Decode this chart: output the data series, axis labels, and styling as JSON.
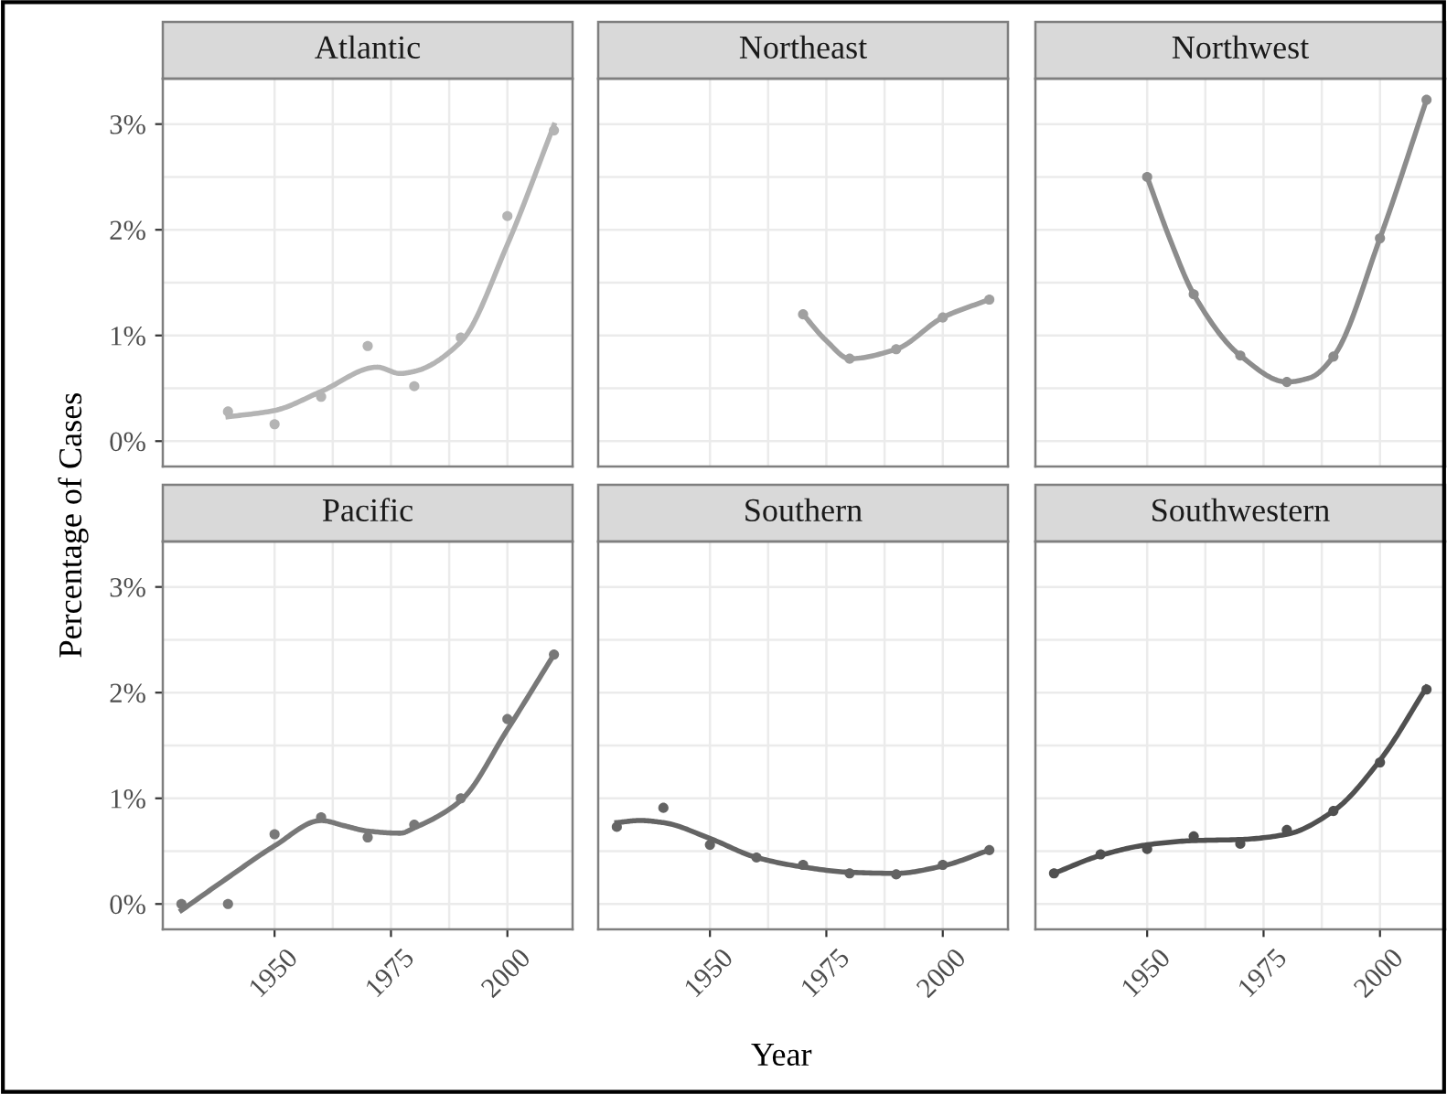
{
  "chart_data": [
    {
      "type": "scatter",
      "title": "Atlantic",
      "tick_labels": "y",
      "grid": true,
      "xlim": [
        1926,
        2014
      ],
      "ylim": [
        -0.24,
        3.43
      ],
      "xticks": [
        {
          "value": 1950,
          "label": null
        },
        {
          "value": 1975,
          "label": null
        },
        {
          "value": 2000,
          "label": null
        }
      ],
      "yticks": [
        {
          "value": 0,
          "label": "0%"
        },
        {
          "value": 1,
          "label": "1%"
        },
        {
          "value": 2,
          "label": "2%"
        },
        {
          "value": 3,
          "label": "3%"
        }
      ],
      "series": [
        {
          "color": "#b4b4b4",
          "x": [
            1940,
            1950,
            1960,
            1970,
            1980,
            1990,
            2000,
            2010
          ],
          "values": [
            0.28,
            0.16,
            0.42,
            0.9,
            0.52,
            0.98,
            2.13,
            2.94
          ]
        },
        {
          "type": "line",
          "color": "#b4b4b4",
          "x": [
            1940,
            1950,
            1960,
            1972,
            1977,
            1980,
            1990,
            2000,
            2010
          ],
          "values": [
            0.23,
            0.29,
            0.47,
            0.7,
            0.64,
            0.66,
            0.94,
            1.86,
            2.99
          ]
        }
      ]
    },
    {
      "type": "scatter",
      "title": "Northeast",
      "tick_labels": false,
      "grid": true,
      "xlim": [
        1926,
        2014
      ],
      "ylim": [
        -0.24,
        3.43
      ],
      "xticks": [
        {
          "value": 1950,
          "label": null
        },
        {
          "value": 1975,
          "label": null
        },
        {
          "value": 2000,
          "label": null
        }
      ],
      "yticks": [
        {
          "value": 0,
          "label": null
        },
        {
          "value": 1,
          "label": null
        },
        {
          "value": 2,
          "label": null
        },
        {
          "value": 3,
          "label": null
        }
      ],
      "series": [
        {
          "color": "#a0a0a0",
          "x": [
            1970,
            1980,
            1990,
            2000,
            2010
          ],
          "values": [
            1.2,
            0.78,
            0.87,
            1.17,
            1.34
          ]
        },
        {
          "type": "line",
          "color": "#a0a0a0",
          "x": [
            1970,
            1975,
            1980,
            1990,
            2000,
            2010
          ],
          "values": [
            1.2,
            0.95,
            0.78,
            0.87,
            1.17,
            1.34
          ]
        }
      ]
    },
    {
      "type": "scatter",
      "title": "Northwest",
      "tick_labels": false,
      "grid": true,
      "xlim": [
        1926,
        2014
      ],
      "ylim": [
        -0.24,
        3.43
      ],
      "xticks": [
        {
          "value": 1950,
          "label": null
        },
        {
          "value": 1975,
          "label": null
        },
        {
          "value": 2000,
          "label": null
        }
      ],
      "yticks": [
        {
          "value": 0,
          "label": null
        },
        {
          "value": 1,
          "label": null
        },
        {
          "value": 2,
          "label": null
        },
        {
          "value": 3,
          "label": null
        }
      ],
      "series": [
        {
          "color": "#8c8c8c",
          "x": [
            1950,
            1960,
            1970,
            1980,
            1990,
            2000,
            2010
          ],
          "values": [
            2.5,
            1.39,
            0.81,
            0.56,
            0.8,
            1.92,
            3.23
          ]
        },
        {
          "type": "line",
          "color": "#8c8c8c",
          "x": [
            1950,
            1955,
            1960,
            1970,
            1980,
            1985,
            1990,
            2000,
            2010
          ],
          "values": [
            2.5,
            1.9,
            1.39,
            0.81,
            0.56,
            0.6,
            0.8,
            1.92,
            3.23
          ]
        }
      ]
    },
    {
      "type": "scatter",
      "title": "Pacific",
      "ylabel": "Percentage of Cases",
      "grid": true,
      "xlim": [
        1926,
        2014
      ],
      "ylim": [
        -0.24,
        3.43
      ],
      "xticks": [
        1950,
        1975,
        2000
      ],
      "yticks": [
        {
          "value": 0,
          "label": "0%"
        },
        {
          "value": 1,
          "label": "1%"
        },
        {
          "value": 2,
          "label": "2%"
        },
        {
          "value": 3,
          "label": "3%"
        }
      ],
      "series": [
        {
          "color": "#787878",
          "x": [
            1930,
            1940,
            1950,
            1960,
            1970,
            1980,
            1990,
            2000,
            2010
          ],
          "values": [
            0.0,
            0.0,
            0.66,
            0.82,
            0.63,
            0.75,
            1.0,
            1.75,
            2.36
          ]
        },
        {
          "type": "line",
          "color": "#787878",
          "x": [
            1930,
            1940,
            1950,
            1960,
            1965,
            1970,
            1977,
            1980,
            1990,
            2000,
            2010
          ],
          "values": [
            -0.06,
            0.25,
            0.55,
            0.79,
            0.74,
            0.69,
            0.67,
            0.72,
            0.98,
            1.65,
            2.36
          ]
        }
      ]
    },
    {
      "type": "scatter",
      "title": "Southern",
      "xlabel": "Year",
      "tick_labels": "x",
      "grid": true,
      "xlim": [
        1926,
        2014
      ],
      "ylim": [
        -0.24,
        3.43
      ],
      "xticks": [
        1950,
        1975,
        2000
      ],
      "yticks": [
        {
          "value": 0,
          "label": null
        },
        {
          "value": 1,
          "label": null
        },
        {
          "value": 2,
          "label": null
        },
        {
          "value": 3,
          "label": null
        }
      ],
      "series": [
        {
          "color": "#646464",
          "x": [
            1930,
            1940,
            1950,
            1960,
            1970,
            1980,
            1990,
            2000,
            2010
          ],
          "values": [
            0.73,
            0.91,
            0.56,
            0.44,
            0.37,
            0.29,
            0.28,
            0.37,
            0.51
          ]
        },
        {
          "type": "line",
          "color": "#646464",
          "x": [
            1930,
            1935,
            1940,
            1950,
            1960,
            1970,
            1980,
            1990,
            2000,
            2010
          ],
          "values": [
            0.77,
            0.79,
            0.77,
            0.62,
            0.44,
            0.35,
            0.3,
            0.29,
            0.36,
            0.51
          ]
        }
      ]
    },
    {
      "type": "scatter",
      "title": "Southwestern",
      "tick_labels": "x",
      "grid": true,
      "xlim": [
        1926,
        2014
      ],
      "ylim": [
        -0.24,
        3.43
      ],
      "xticks": [
        1950,
        1975,
        2000
      ],
      "yticks": [
        {
          "value": 0,
          "label": null
        },
        {
          "value": 1,
          "label": null
        },
        {
          "value": 2,
          "label": null
        },
        {
          "value": 3,
          "label": null
        }
      ],
      "series": [
        {
          "color": "#505050",
          "x": [
            1930,
            1940,
            1950,
            1960,
            1970,
            1980,
            1990,
            2000,
            2010
          ],
          "values": [
            0.29,
            0.47,
            0.52,
            0.64,
            0.57,
            0.7,
            0.88,
            1.34,
            2.03
          ]
        },
        {
          "type": "line",
          "color": "#505050",
          "x": [
            1930,
            1940,
            1950,
            1960,
            1970,
            1980,
            1990,
            2000,
            2010
          ],
          "values": [
            0.29,
            0.46,
            0.56,
            0.6,
            0.61,
            0.66,
            0.88,
            1.36,
            2.05
          ]
        }
      ]
    }
  ]
}
